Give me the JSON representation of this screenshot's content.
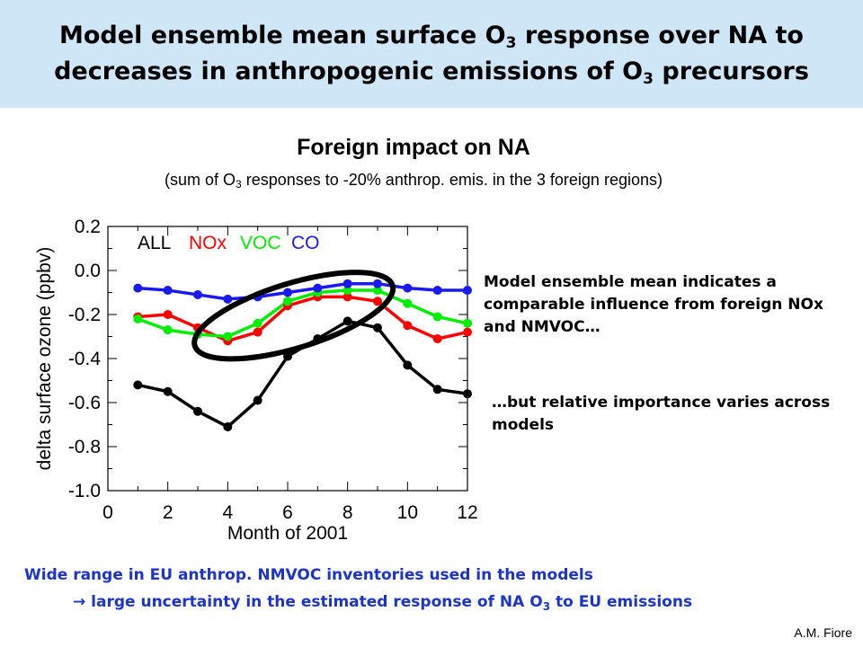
{
  "header": {
    "title_line1_a": "Model ensemble mean surface O",
    "title_line1_sub": "3",
    "title_line1_b": " response over NA to",
    "title_line2_a": "decreases in anthropogenic emissions of O",
    "title_line2_sub": "3",
    "title_line2_b": " precursors",
    "background_color": "#cfe6f7"
  },
  "chart_data": {
    "type": "line",
    "title": "Foreign impact on NA",
    "subtitle_a": "(sum of O",
    "subtitle_sub": "3",
    "subtitle_b": " responses to -20% anthrop. emis. in the 3 foreign regions)",
    "xlabel": "Month of 2001",
    "ylabel": "delta surface ozone (ppbv)",
    "xlim": [
      0,
      12
    ],
    "ylim": [
      -1.0,
      0.2
    ],
    "xticks": [
      "0",
      "2",
      "4",
      "6",
      "8",
      "10",
      "12"
    ],
    "yticks": [
      "0.2",
      "0.0",
      "-0.2",
      "-0.4",
      "-0.6",
      "-0.8",
      "-1.0"
    ],
    "x": [
      1,
      2,
      3,
      4,
      5,
      6,
      7,
      8,
      9,
      10,
      11,
      12
    ],
    "grid": false,
    "legend_position": "top-left",
    "series": [
      {
        "name": "ALL",
        "color": "#000000",
        "values": [
          -0.52,
          -0.55,
          -0.64,
          -0.71,
          -0.59,
          -0.39,
          -0.31,
          -0.23,
          -0.26,
          -0.43,
          -0.54,
          -0.56
        ]
      },
      {
        "name": "NOx",
        "color": "#ff0000",
        "values": [
          -0.21,
          -0.2,
          -0.26,
          -0.32,
          -0.28,
          -0.16,
          -0.12,
          -0.12,
          -0.14,
          -0.25,
          -0.31,
          -0.28
        ]
      },
      {
        "name": "VOC",
        "color": "#00ee00",
        "values": [
          -0.22,
          -0.27,
          -0.29,
          -0.3,
          -0.24,
          -0.14,
          -0.1,
          -0.09,
          -0.09,
          -0.15,
          -0.21,
          -0.24
        ]
      },
      {
        "name": "CO",
        "color": "#1a1aee",
        "values": [
          -0.08,
          -0.09,
          -0.11,
          -0.13,
          -0.12,
          -0.1,
          -0.08,
          -0.06,
          -0.06,
          -0.08,
          -0.09,
          -0.09
        ]
      }
    ],
    "annotation": "ellipse highlighting NOx and VOC curves",
    "annotation_ellipse": {
      "x_range": [
        3.1,
        9.3
      ],
      "y_range": [
        -0.4,
        -0.01
      ]
    }
  },
  "notes": {
    "note1": "Model ensemble mean indicates a comparable influence from foreign NOx and NMVOC…",
    "note2": "…but relative importance varies across models"
  },
  "footer": {
    "line1": "Wide range in EU anthrop. NMVOC inventories used in the models",
    "line2_arrow": "→",
    "line2_a": " large uncertainty in the estimated response of NA O",
    "line2_sub": "3",
    "line2_b": " to EU emissions",
    "color": "#1c33cc"
  },
  "author": "A.M. Fiore"
}
